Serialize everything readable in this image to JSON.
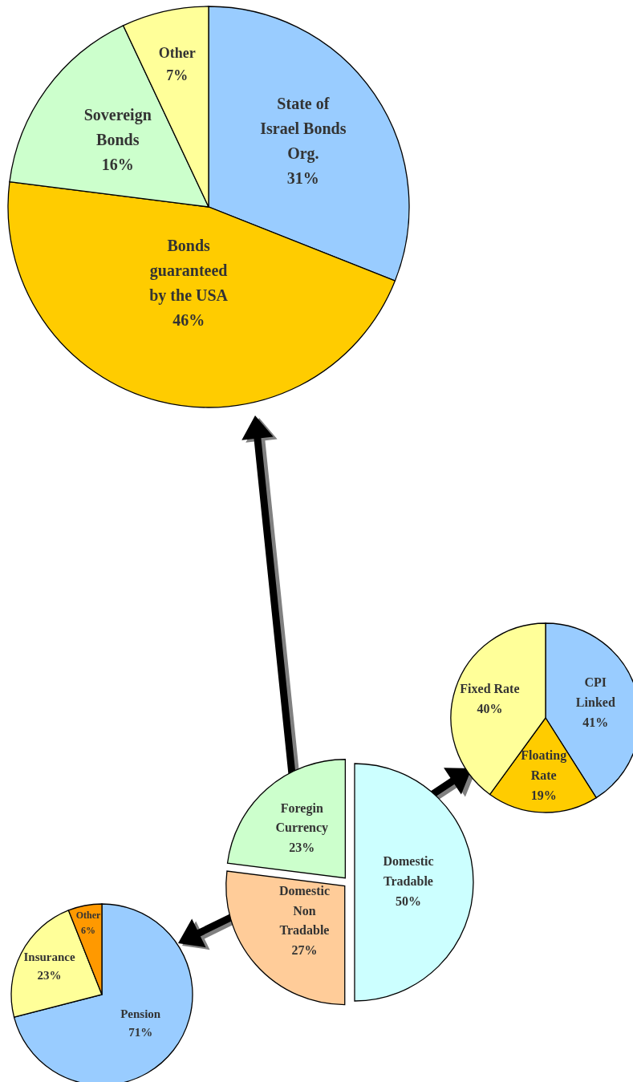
{
  "chart_data": [
    {
      "type": "pie",
      "categories": [
        "State of Israel Bonds Org.",
        "Bonds guaranteed by the USA",
        "Sovereign Bonds",
        "Other"
      ],
      "values": [
        31,
        46,
        16,
        7
      ],
      "colors": [
        "#99ccff",
        "#ffcc00",
        "#ccffcc",
        "#ffff99"
      ],
      "value_labels": [
        "31%",
        "46%",
        "16%",
        "7%"
      ]
    },
    {
      "type": "pie",
      "categories": [
        "CPI Linked",
        "Floating Rate",
        "Fixed Rate"
      ],
      "values": [
        41,
        19,
        40
      ],
      "colors": [
        "#99ccff",
        "#ffcc00",
        "#ffff99"
      ],
      "value_labels": [
        "41%",
        "19%",
        "40%"
      ]
    },
    {
      "type": "pie",
      "categories": [
        "Domestic Tradable",
        "Domestic Non Tradable",
        "Foregin Currency"
      ],
      "values": [
        50,
        27,
        23
      ],
      "colors": [
        "#ccffff",
        "#ffcc99",
        "#ccffcc"
      ],
      "value_labels": [
        "50%",
        "27%",
        "23%"
      ]
    },
    {
      "type": "pie",
      "categories": [
        "Pension",
        "Insurance",
        "Other"
      ],
      "values": [
        71,
        23,
        6
      ],
      "colors": [
        "#99ccff",
        "#ffff99",
        "#ff9900"
      ],
      "value_labels": [
        "71%",
        "23%",
        "6%"
      ]
    }
  ]
}
